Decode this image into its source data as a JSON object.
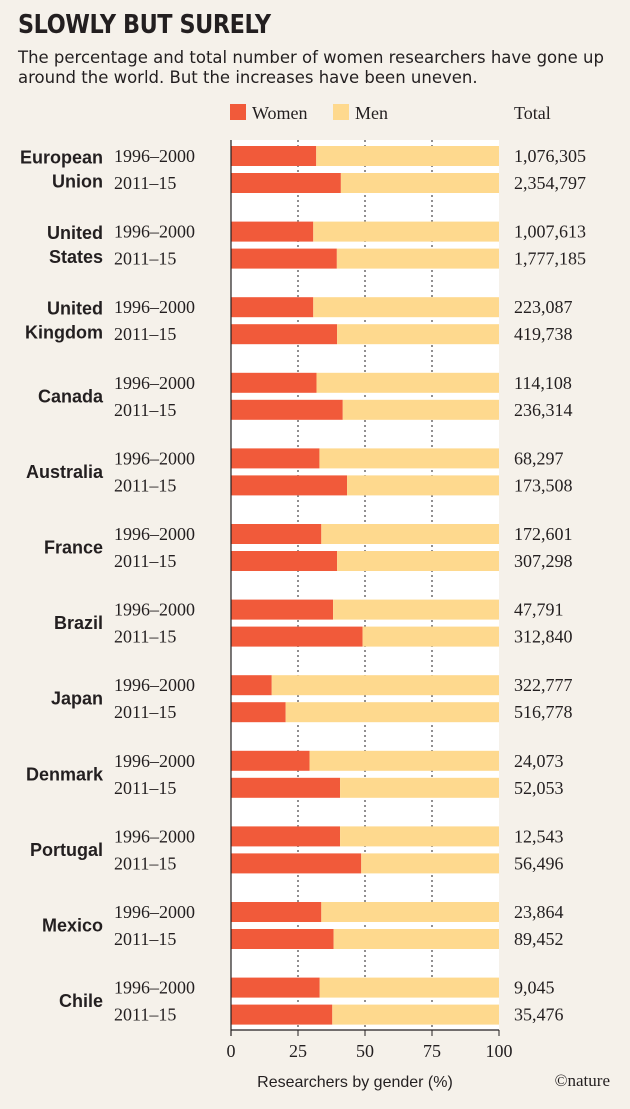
{
  "title": "SLOWLY BUT SURELY",
  "subtitle": "The percentage and total number of women researchers have gone up around the world. But the increases have been uneven.",
  "credit": "©nature",
  "colors": {
    "women": "#f15a3a",
    "men": "#fed98e",
    "background": "#f5f1ea"
  },
  "chart_data": {
    "type": "bar",
    "orientation": "horizontal",
    "stacked": true,
    "xlabel": "Researchers by gender (%)",
    "xlim": [
      0,
      100
    ],
    "xticks": [
      "0",
      "25",
      "50",
      "75",
      "100"
    ],
    "grid": "vertical dotted at 25, 50, 75",
    "legend": {
      "placement": "top",
      "entries": [
        "Women",
        "Men"
      ]
    },
    "totals_header": "Total",
    "groups": [
      {
        "country": [
          "European",
          "Union"
        ],
        "rows": [
          {
            "period": "1996–2000",
            "women": 31.8,
            "men": 68.2,
            "total": "1,076,305"
          },
          {
            "period": "2011–15",
            "women": 41.0,
            "men": 59.0,
            "total": "2,354,797"
          }
        ]
      },
      {
        "country": [
          "United",
          "States"
        ],
        "rows": [
          {
            "period": "1996–2000",
            "women": 30.7,
            "men": 69.3,
            "total": "1,007,613"
          },
          {
            "period": "2011–15",
            "women": 39.5,
            "men": 60.5,
            "total": "1,777,185"
          }
        ]
      },
      {
        "country": [
          "United",
          "Kingdom"
        ],
        "rows": [
          {
            "period": "1996–2000",
            "women": 30.7,
            "men": 69.3,
            "total": "223,087"
          },
          {
            "period": "2011–15",
            "women": 39.6,
            "men": 60.4,
            "total": "419,738"
          }
        ]
      },
      {
        "country": [
          "Canada"
        ],
        "rows": [
          {
            "period": "1996–2000",
            "women": 31.9,
            "men": 68.1,
            "total": "114,108"
          },
          {
            "period": "2011–15",
            "women": 41.7,
            "men": 58.3,
            "total": "236,314"
          }
        ]
      },
      {
        "country": [
          "Australia"
        ],
        "rows": [
          {
            "period": "1996–2000",
            "women": 33.0,
            "men": 67.0,
            "total": "68,297"
          },
          {
            "period": "2011–15",
            "women": 43.3,
            "men": 56.7,
            "total": "173,508"
          }
        ]
      },
      {
        "country": [
          "France"
        ],
        "rows": [
          {
            "period": "1996–2000",
            "women": 33.7,
            "men": 66.3,
            "total": "172,601"
          },
          {
            "period": "2011–15",
            "women": 39.6,
            "men": 60.4,
            "total": "307,298"
          }
        ]
      },
      {
        "country": [
          "Brazil"
        ],
        "rows": [
          {
            "period": "1996–2000",
            "women": 38.1,
            "men": 61.9,
            "total": "47,791"
          },
          {
            "period": "2011–15",
            "women": 49.1,
            "men": 50.9,
            "total": "312,840"
          }
        ]
      },
      {
        "country": [
          "Japan"
        ],
        "rows": [
          {
            "period": "1996–2000",
            "women": 15.2,
            "men": 84.8,
            "total": "322,777"
          },
          {
            "period": "2011–15",
            "women": 20.4,
            "men": 79.6,
            "total": "516,778"
          }
        ]
      },
      {
        "country": [
          "Denmark"
        ],
        "rows": [
          {
            "period": "1996–2000",
            "women": 29.3,
            "men": 70.7,
            "total": "24,073"
          },
          {
            "period": "2011–15",
            "women": 40.7,
            "men": 59.3,
            "total": "52,053"
          }
        ]
      },
      {
        "country": [
          "Portugal"
        ],
        "rows": [
          {
            "period": "1996–2000",
            "women": 40.7,
            "men": 59.3,
            "total": "12,543"
          },
          {
            "period": "2011–15",
            "women": 48.6,
            "men": 51.4,
            "total": "56,496"
          }
        ]
      },
      {
        "country": [
          "Mexico"
        ],
        "rows": [
          {
            "period": "1996–2000",
            "women": 33.7,
            "men": 66.3,
            "total": "23,864"
          },
          {
            "period": "2011–15",
            "women": 38.3,
            "men": 61.7,
            "total": "89,452"
          }
        ]
      },
      {
        "country": [
          "Chile"
        ],
        "rows": [
          {
            "period": "1996–2000",
            "women": 33.1,
            "men": 66.9,
            "total": "9,045"
          },
          {
            "period": "2011–15",
            "women": 37.8,
            "men": 62.2,
            "total": "35,476"
          }
        ]
      }
    ]
  }
}
